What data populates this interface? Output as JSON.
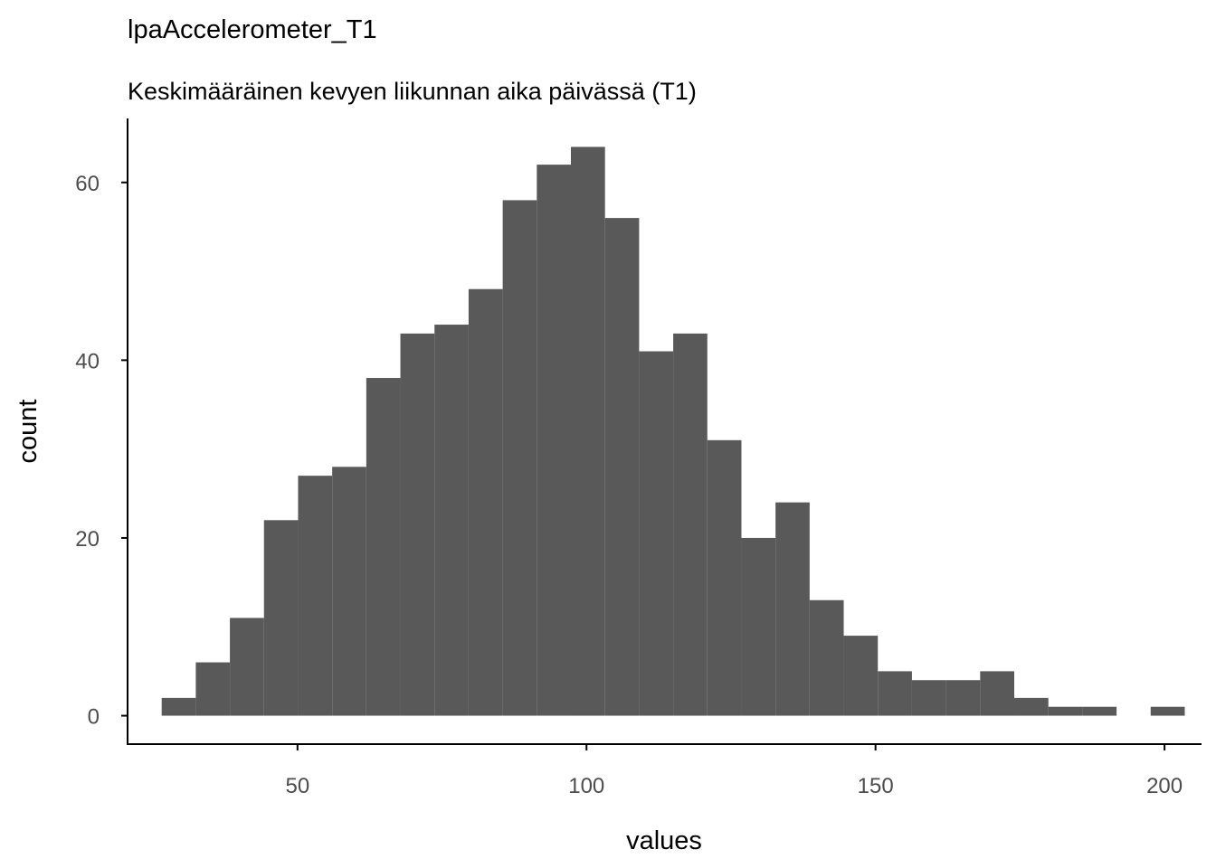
{
  "chart_data": {
    "type": "bar",
    "title": "lpaAccelerometer_T1",
    "subtitle": "Keskimääräinen kevyen liikunnan aika päivässä (T1)",
    "xlabel": "values",
    "ylabel": "count",
    "xlim": [
      20.6,
      206.4
    ],
    "ylim": [
      -3.2,
      67.2
    ],
    "xticks": [
      50,
      100,
      150,
      200
    ],
    "yticks": [
      0,
      20,
      40,
      60
    ],
    "grid": false,
    "bin_width": 5.9,
    "bins": [
      {
        "x0": 26.5,
        "x1": 32.4,
        "count": 2
      },
      {
        "x0": 32.4,
        "x1": 38.3,
        "count": 6
      },
      {
        "x0": 38.3,
        "x1": 44.2,
        "count": 11
      },
      {
        "x0": 44.2,
        "x1": 50.1,
        "count": 22
      },
      {
        "x0": 50.1,
        "x1": 56.0,
        "count": 27
      },
      {
        "x0": 56.0,
        "x1": 61.9,
        "count": 28
      },
      {
        "x0": 61.9,
        "x1": 67.8,
        "count": 38
      },
      {
        "x0": 67.8,
        "x1": 73.7,
        "count": 43
      },
      {
        "x0": 73.7,
        "x1": 79.6,
        "count": 44
      },
      {
        "x0": 79.6,
        "x1": 85.5,
        "count": 48
      },
      {
        "x0": 85.5,
        "x1": 91.4,
        "count": 58
      },
      {
        "x0": 91.4,
        "x1": 97.3,
        "count": 62
      },
      {
        "x0": 97.3,
        "x1": 103.2,
        "count": 64
      },
      {
        "x0": 103.2,
        "x1": 109.1,
        "count": 56
      },
      {
        "x0": 109.1,
        "x1": 115.0,
        "count": 41
      },
      {
        "x0": 115.0,
        "x1": 120.9,
        "count": 43
      },
      {
        "x0": 120.9,
        "x1": 126.8,
        "count": 31
      },
      {
        "x0": 126.8,
        "x1": 132.7,
        "count": 20
      },
      {
        "x0": 132.7,
        "x1": 138.6,
        "count": 24
      },
      {
        "x0": 138.6,
        "x1": 144.5,
        "count": 13
      },
      {
        "x0": 144.5,
        "x1": 150.4,
        "count": 9
      },
      {
        "x0": 150.4,
        "x1": 156.3,
        "count": 5
      },
      {
        "x0": 156.3,
        "x1": 162.2,
        "count": 4
      },
      {
        "x0": 162.2,
        "x1": 168.1,
        "count": 4
      },
      {
        "x0": 168.1,
        "x1": 174.0,
        "count": 5
      },
      {
        "x0": 174.0,
        "x1": 179.9,
        "count": 2
      },
      {
        "x0": 179.9,
        "x1": 185.8,
        "count": 1
      },
      {
        "x0": 185.8,
        "x1": 191.7,
        "count": 1
      },
      {
        "x0": 191.7,
        "x1": 197.6,
        "count": 0
      },
      {
        "x0": 197.6,
        "x1": 203.5,
        "count": 1
      }
    ],
    "colors": {
      "bar": "#595959",
      "axis": "#000000",
      "tick_label": "#4d4d4d",
      "text": "#000000"
    }
  }
}
